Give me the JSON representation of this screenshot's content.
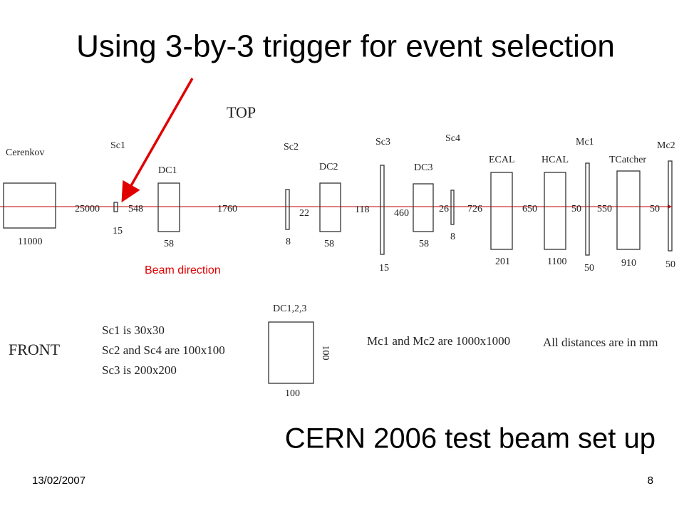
{
  "header": {
    "title": "Using 3-by-3 trigger for event selection"
  },
  "top_view": {
    "label": "TOP",
    "components": [
      {
        "label": "Cerenkov",
        "thickness": "11000"
      },
      {
        "label": "Sc1",
        "thickness": "15"
      },
      {
        "label": "DC1",
        "thickness": "58"
      },
      {
        "label": "Sc2",
        "thickness": "8"
      },
      {
        "label": "DC2",
        "thickness": "58"
      },
      {
        "label": "Sc3",
        "thickness": "15"
      },
      {
        "label": "DC3",
        "thickness": "58"
      },
      {
        "label": "Sc4",
        "thickness": "8"
      },
      {
        "label": "ECAL",
        "thickness": "201"
      },
      {
        "label": "HCAL",
        "thickness": "1100"
      },
      {
        "label": "Mc1",
        "thickness": "50"
      },
      {
        "label": "TCatcher",
        "thickness": "910"
      },
      {
        "label": "Mc2",
        "thickness": "50"
      }
    ],
    "distances": [
      "25000",
      "548",
      "1760",
      "22",
      "118",
      "460",
      "26",
      "726",
      "650",
      "50",
      "550",
      "50"
    ],
    "annotation": "Beam direction"
  },
  "front_view": {
    "label": "FRONT",
    "notes": [
      "Sc1 is 30x30",
      "Sc2 and Sc4 are 100x100",
      "Sc3 is 200x200"
    ],
    "dc_label": "DC1,2,3",
    "dc_height": "100",
    "dc_width": "100",
    "mc_note": "Mc1 and Mc2 are 1000x1000",
    "units_note": "All distances are in mm"
  },
  "subtitle": "CERN 2006 test beam set up",
  "footer": {
    "date": "13/02/2007",
    "page": "8"
  }
}
